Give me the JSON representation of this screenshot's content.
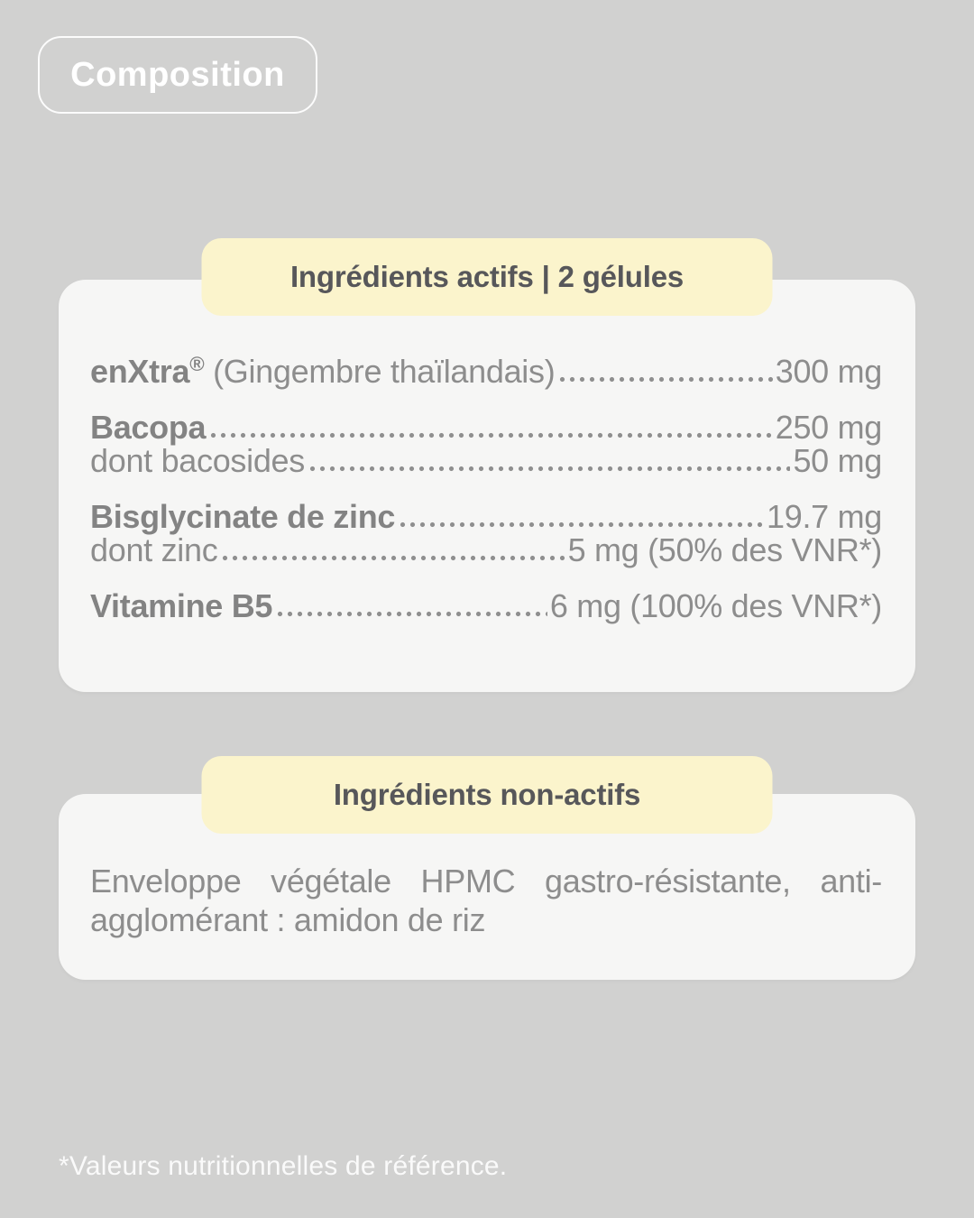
{
  "palette": {
    "background": "#d1d1d0",
    "card": "#f6f6f5",
    "accent_yellow": "#fbf4cc",
    "heading_text": "#57575a",
    "body_text": "#8d8d8d",
    "badge_text": "#ffffff"
  },
  "badge": {
    "label": "Composition"
  },
  "active": {
    "title": "Ingrédients actifs | 2 gélules",
    "rows": [
      {
        "bold": "enXtra",
        "sup": "®",
        "rest": " (Gingembre thaïlandais)",
        "value": "300 mg"
      },
      {
        "bold": "Bacopa",
        "rest": "",
        "value": "250 mg"
      },
      {
        "bold": "",
        "rest": "dont bacosides",
        "value": "50 mg"
      },
      {
        "bold": "Bisglycinate de zinc",
        "rest": "",
        "value": "19.7 mg"
      },
      {
        "bold": "",
        "rest": "dont zinc",
        "value": "5 mg (50% des VNR*)"
      },
      {
        "bold": "Vitamine B5",
        "rest": "",
        "value": "6 mg (100% des VNR*)"
      }
    ]
  },
  "inactive": {
    "title": "Ingrédients non-actifs",
    "lines": [
      "Enveloppe végétale HPMC gastro-résistante, anti-",
      "agglomérant : amidon de riz"
    ]
  },
  "footnote": "*Valeurs nutritionnelles de référence."
}
